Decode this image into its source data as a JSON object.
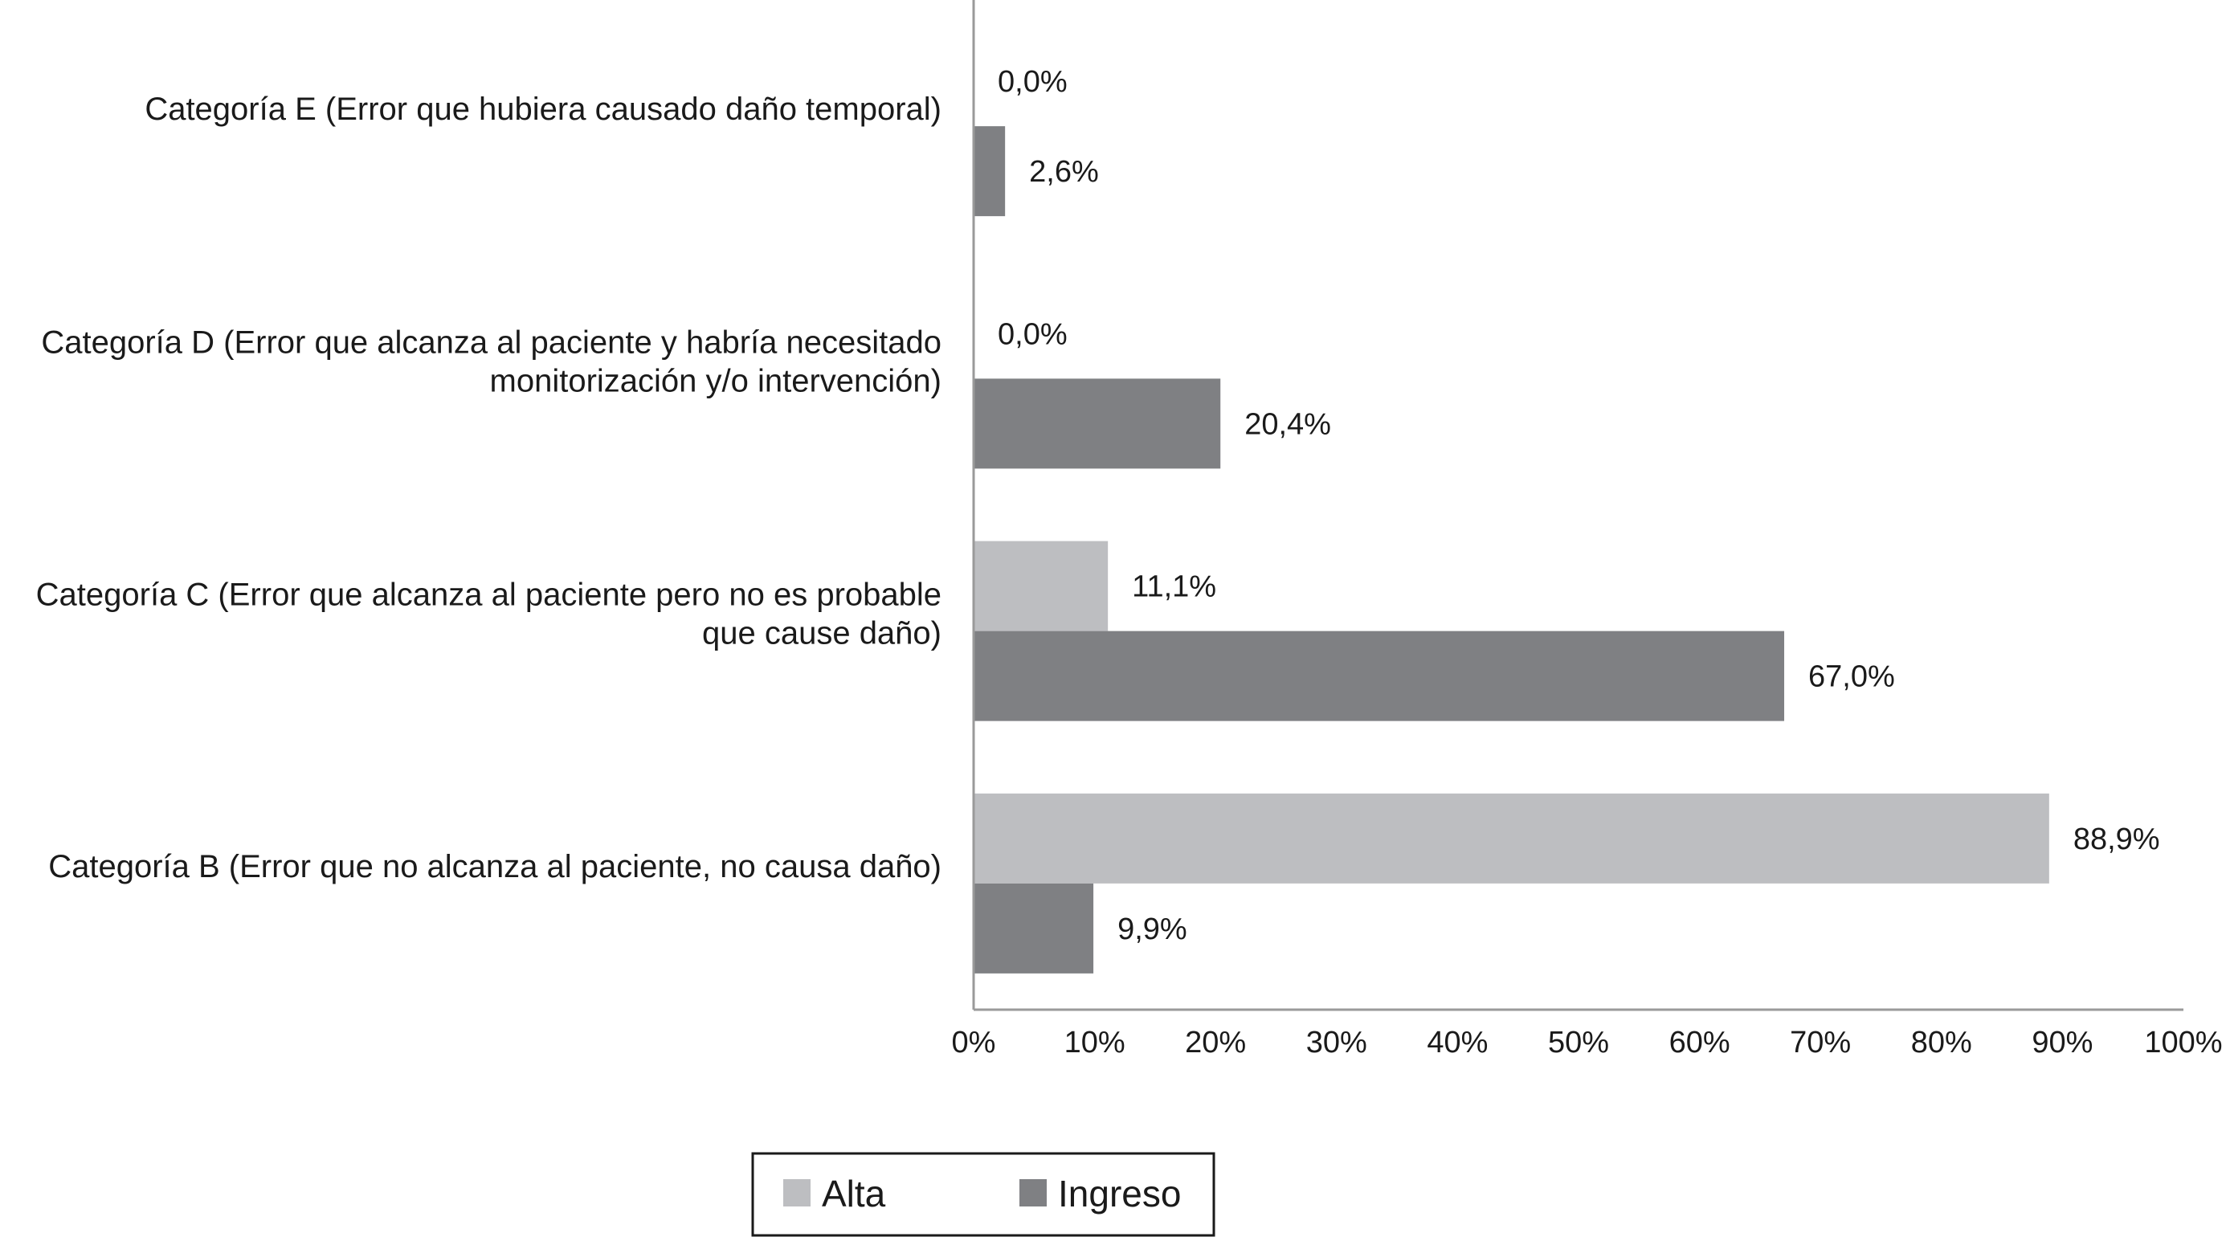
{
  "chart_data": {
    "type": "bar",
    "orientation": "horizontal",
    "categories": [
      [
        "Categoría E (Error que hubiera causado daño temporal)"
      ],
      [
        "Categoría D (Error que alcanza al paciente y habría necesitado",
        "monitorización y/o intervención)"
      ],
      [
        "Categoría C (Error que alcanza al paciente pero no es probable",
        "que cause daño)"
      ],
      [
        "Categoría B (Error que no alcanza al paciente, no causa daño)"
      ]
    ],
    "series": [
      {
        "name": "Alta",
        "color": "#bdbec1",
        "values": [
          0.0,
          0.0,
          11.1,
          88.9
        ],
        "labels": [
          "0,0%",
          "0,0%",
          "11,1%",
          "88,9%"
        ]
      },
      {
        "name": "Ingreso",
        "color": "#7f8083",
        "values": [
          2.6,
          20.4,
          67.0,
          9.9
        ],
        "labels": [
          "2,6%",
          "20,4%",
          "67,0%",
          "9,9%"
        ]
      }
    ],
    "xlim": [
      0,
      100
    ],
    "xticks": [
      "0%",
      "10%",
      "20%",
      "30%",
      "40%",
      "50%",
      "60%",
      "70%",
      "80%",
      "90%",
      "100%"
    ],
    "grid": false,
    "legend": "bottom-center"
  }
}
